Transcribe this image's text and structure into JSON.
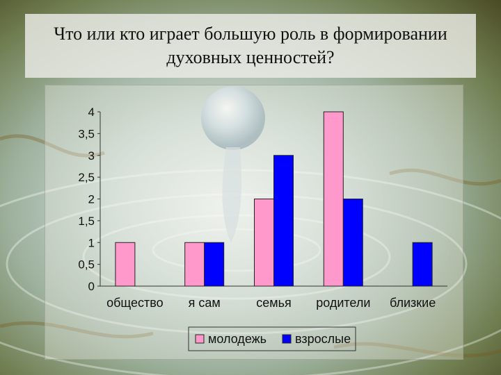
{
  "title": "Что или кто играет большую роль в формировании духовных ценностей?",
  "chart_data": {
    "type": "bar",
    "title": "Что или кто играет большую роль в формировании духовных ценностей?",
    "categories": [
      "общество",
      "я сам",
      "семья",
      "родители",
      "близкие"
    ],
    "series": [
      {
        "name": "молодежь",
        "values": [
          1,
          1,
          2,
          4,
          0
        ],
        "color": "#ff99cc"
      },
      {
        "name": "взрослые",
        "values": [
          0,
          1,
          3,
          2,
          1
        ],
        "color": "#0000ff"
      }
    ],
    "yticks": [
      "0",
      "0,5",
      "1",
      "1,5",
      "2",
      "2,5",
      "3",
      "3,5",
      "4"
    ],
    "ylim": [
      0,
      4
    ],
    "xlabel": "",
    "ylabel": "",
    "grid": false,
    "legend": "bottom"
  }
}
